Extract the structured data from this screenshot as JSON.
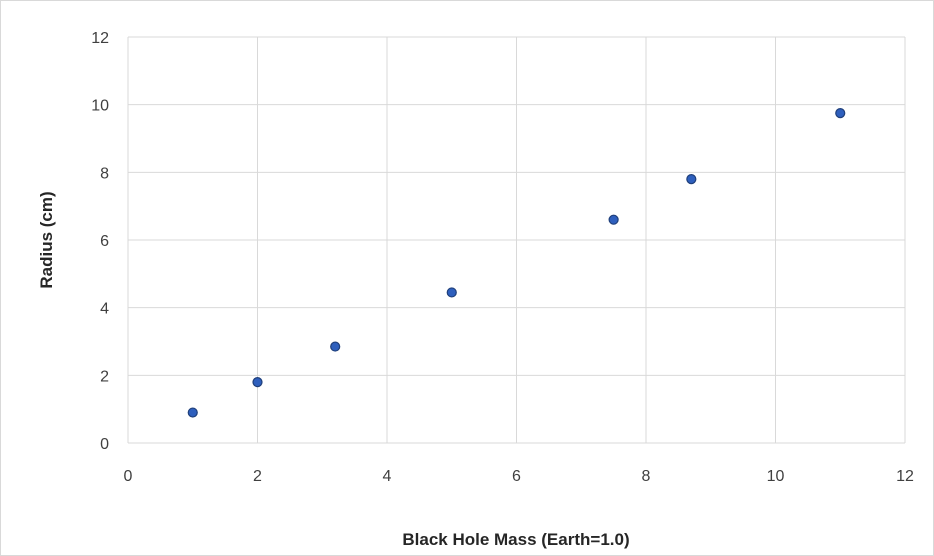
{
  "chart_data": {
    "type": "scatter",
    "title": "",
    "xlabel": "Black Hole Mass (Earth=1.0)",
    "ylabel": "Radius (cm)",
    "xlim": [
      0,
      12
    ],
    "ylim": [
      0,
      12
    ],
    "xticks": [
      "0",
      "2",
      "4",
      "6",
      "8",
      "10",
      "12"
    ],
    "yticks": [
      "0",
      "2",
      "4",
      "6",
      "8",
      "10",
      "12"
    ],
    "grid": true,
    "legend": "none",
    "marker_fill": "#2e5fbd",
    "marker_edge": "#1f3f7a",
    "series": [
      {
        "x": [
          1.0,
          2.0,
          3.2,
          5.0,
          7.5,
          8.7,
          11.0
        ],
        "y": [
          0.9,
          1.8,
          2.85,
          4.45,
          6.6,
          7.8,
          9.75
        ]
      }
    ]
  }
}
